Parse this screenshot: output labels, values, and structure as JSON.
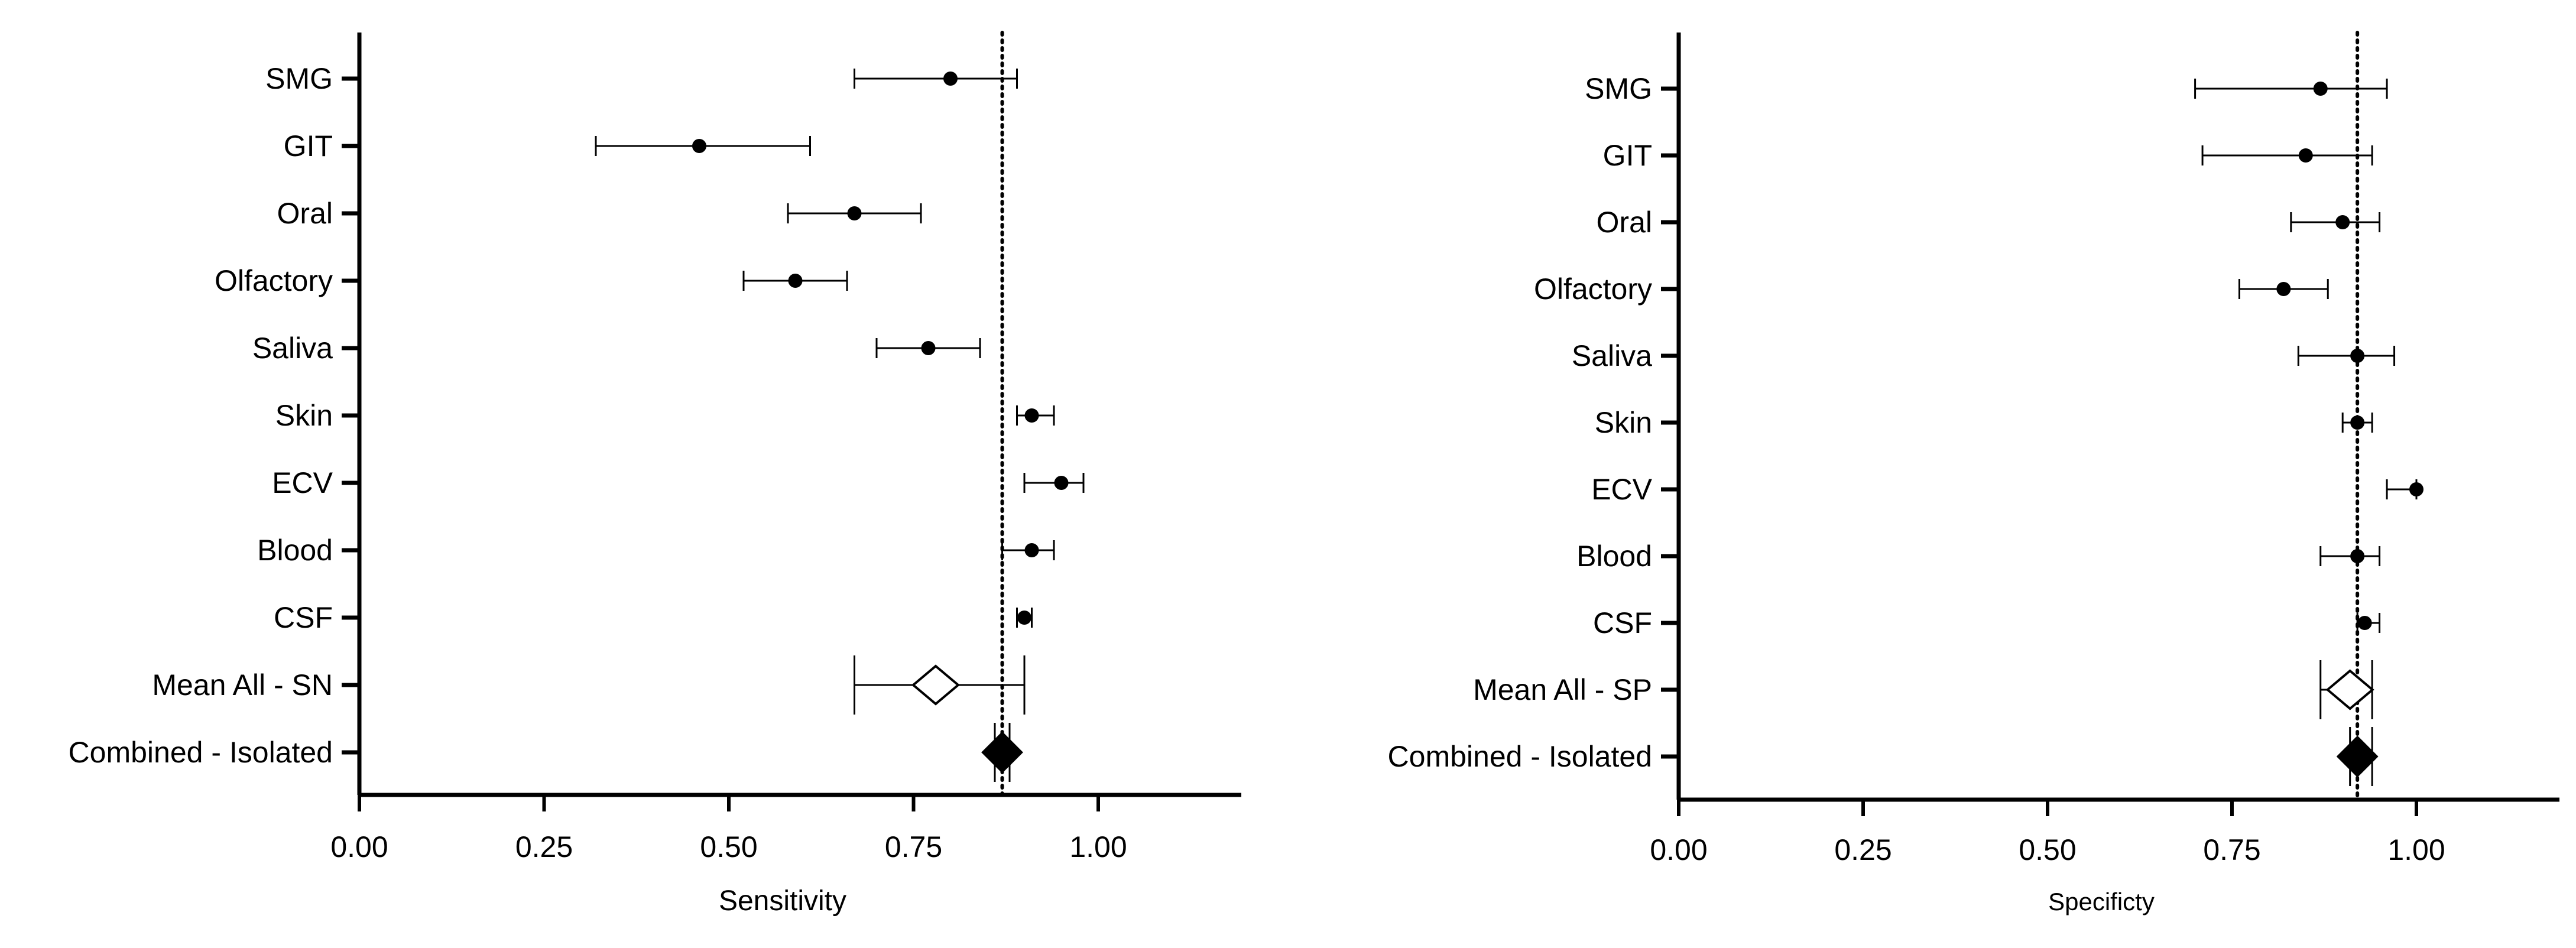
{
  "chart_data": [
    {
      "type": "forest",
      "title": "",
      "xlabel": "Sensitivity",
      "ylabel": "",
      "xlim": [
        0,
        1.2
      ],
      "xticks": [
        "0.00",
        "0.25",
        "0.50",
        "0.75",
        "1.00"
      ],
      "reference_line": 0.87,
      "categories": [
        "SMG",
        "GIT",
        "Oral",
        "Olfactory",
        "Saliva",
        "Skin",
        "ECV",
        "Blood",
        "CSF",
        "Mean All - SN",
        "Combined - Isolated"
      ],
      "points": [
        {
          "label": "SMG",
          "estimate": 0.8,
          "lower": 0.67,
          "upper": 0.89,
          "marker": "circle"
        },
        {
          "label": "GIT",
          "estimate": 0.46,
          "lower": 0.32,
          "upper": 0.61,
          "marker": "circle"
        },
        {
          "label": "Oral",
          "estimate": 0.67,
          "lower": 0.58,
          "upper": 0.76,
          "marker": "circle"
        },
        {
          "label": "Olfactory",
          "estimate": 0.59,
          "lower": 0.52,
          "upper": 0.66,
          "marker": "circle"
        },
        {
          "label": "Saliva",
          "estimate": 0.77,
          "lower": 0.7,
          "upper": 0.84,
          "marker": "circle"
        },
        {
          "label": "Skin",
          "estimate": 0.91,
          "lower": 0.89,
          "upper": 0.94,
          "marker": "circle"
        },
        {
          "label": "ECV",
          "estimate": 0.95,
          "lower": 0.9,
          "upper": 0.98,
          "marker": "circle"
        },
        {
          "label": "Blood",
          "estimate": 0.91,
          "lower": 0.87,
          "upper": 0.94,
          "marker": "circle"
        },
        {
          "label": "CSF",
          "estimate": 0.9,
          "lower": 0.89,
          "upper": 0.91,
          "marker": "circle"
        },
        {
          "label": "Mean All - SN",
          "estimate": 0.78,
          "lower": 0.67,
          "upper": 0.9,
          "marker": "diamond-open"
        },
        {
          "label": "Combined - Isolated",
          "estimate": 0.87,
          "lower": 0.86,
          "upper": 0.88,
          "marker": "diamond-filled"
        }
      ]
    },
    {
      "type": "forest",
      "title": "",
      "xlabel": "Specificty",
      "ylabel": "",
      "xlim": [
        0,
        1.2
      ],
      "xticks": [
        "0.00",
        "0.25",
        "0.50",
        "0.75",
        "1.00"
      ],
      "reference_line": 0.92,
      "categories": [
        "SMG",
        "GIT",
        "Oral",
        "Olfactory",
        "Saliva",
        "Skin",
        "ECV",
        "Blood",
        "CSF",
        "Mean All - SP",
        "Combined - Isolated"
      ],
      "points": [
        {
          "label": "SMG",
          "estimate": 0.87,
          "lower": 0.7,
          "upper": 0.96,
          "marker": "circle"
        },
        {
          "label": "GIT",
          "estimate": 0.85,
          "lower": 0.71,
          "upper": 0.94,
          "marker": "circle"
        },
        {
          "label": "Oral",
          "estimate": 0.9,
          "lower": 0.83,
          "upper": 0.95,
          "marker": "circle"
        },
        {
          "label": "Olfactory",
          "estimate": 0.82,
          "lower": 0.76,
          "upper": 0.88,
          "marker": "circle"
        },
        {
          "label": "Saliva",
          "estimate": 0.92,
          "lower": 0.84,
          "upper": 0.97,
          "marker": "circle"
        },
        {
          "label": "Skin",
          "estimate": 0.92,
          "lower": 0.9,
          "upper": 0.94,
          "marker": "circle"
        },
        {
          "label": "ECV",
          "estimate": 1.0,
          "lower": 0.96,
          "upper": 1.0,
          "marker": "circle"
        },
        {
          "label": "Blood",
          "estimate": 0.92,
          "lower": 0.87,
          "upper": 0.95,
          "marker": "circle"
        },
        {
          "label": "CSF",
          "estimate": 0.93,
          "lower": 0.92,
          "upper": 0.95,
          "marker": "circle"
        },
        {
          "label": "Mean All - SP",
          "estimate": 0.91,
          "lower": 0.87,
          "upper": 0.94,
          "marker": "diamond-open"
        },
        {
          "label": "Combined - Isolated",
          "estimate": 0.92,
          "lower": 0.91,
          "upper": 0.94,
          "marker": "diamond-filled"
        }
      ]
    }
  ]
}
